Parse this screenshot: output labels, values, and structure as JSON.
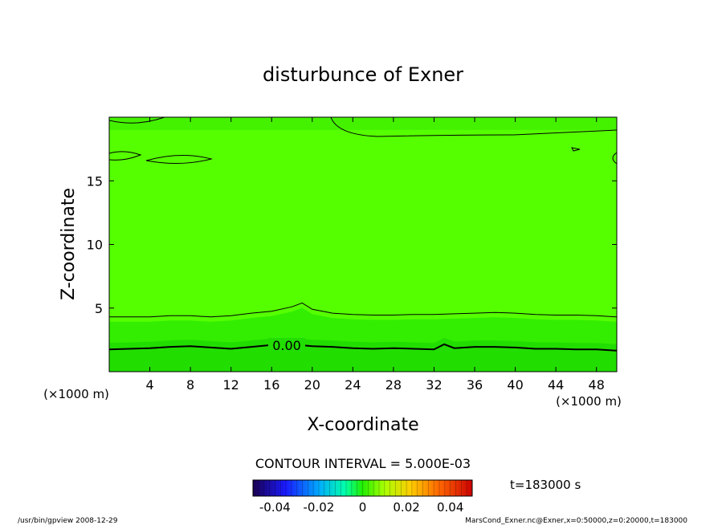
{
  "chart_data": {
    "type": "contour",
    "title": "disturbunce of Exner",
    "xlabel": "X-coordinate",
    "ylabel": "Z-coordinate",
    "x_unit_left": "(×1000 m)",
    "x_unit_right": "(×1000 m)",
    "xlim": [
      0,
      50
    ],
    "ylim": [
      0,
      20
    ],
    "xticks": [
      4,
      8,
      12,
      16,
      20,
      24,
      28,
      32,
      36,
      40,
      44,
      48
    ],
    "yticks": [
      5,
      10,
      15
    ],
    "contour_label": "0.00",
    "contour_interval_text": "CONTOUR INTERVAL = 5.000E-03",
    "time_text": "t=183000 s",
    "colorbar": {
      "ticks": [
        "-0.04",
        "-0.02",
        "0",
        "0.02",
        "0.04"
      ],
      "tick_values": [
        -0.04,
        -0.02,
        0,
        0.02,
        0.04
      ],
      "range": [
        -0.05,
        0.05
      ]
    },
    "contours": {
      "zero_line": [
        [
          0,
          1.75
        ],
        [
          2,
          1.8
        ],
        [
          4,
          1.85
        ],
        [
          6,
          1.95
        ],
        [
          8,
          2.0
        ],
        [
          10,
          1.9
        ],
        [
          12,
          1.8
        ],
        [
          14,
          1.95
        ],
        [
          16,
          2.1
        ],
        [
          18,
          2.15
        ],
        [
          20,
          2.0
        ],
        [
          22,
          1.95
        ],
        [
          24,
          1.85
        ],
        [
          26,
          1.8
        ],
        [
          28,
          1.85
        ],
        [
          30,
          1.8
        ],
        [
          32,
          1.75
        ],
        [
          33,
          2.15
        ],
        [
          34,
          1.85
        ],
        [
          36,
          1.95
        ],
        [
          38,
          1.95
        ],
        [
          40,
          1.9
        ],
        [
          42,
          1.8
        ],
        [
          44,
          1.8
        ],
        [
          46,
          1.75
        ],
        [
          48,
          1.75
        ],
        [
          50,
          1.65
        ]
      ],
      "upper_line": [
        [
          0,
          4.3
        ],
        [
          4,
          4.3
        ],
        [
          6,
          4.4
        ],
        [
          8,
          4.4
        ],
        [
          10,
          4.3
        ],
        [
          12,
          4.4
        ],
        [
          14,
          4.6
        ],
        [
          16,
          4.75
        ],
        [
          18,
          5.1
        ],
        [
          19,
          5.4
        ],
        [
          20,
          4.9
        ],
        [
          22,
          4.6
        ],
        [
          24,
          4.5
        ],
        [
          26,
          4.45
        ],
        [
          28,
          4.45
        ],
        [
          30,
          4.5
        ],
        [
          32,
          4.5
        ],
        [
          34,
          4.55
        ],
        [
          36,
          4.6
        ],
        [
          38,
          4.65
        ],
        [
          40,
          4.6
        ],
        [
          42,
          4.5
        ],
        [
          44,
          4.45
        ],
        [
          46,
          4.45
        ],
        [
          48,
          4.4
        ],
        [
          50,
          4.3
        ]
      ]
    }
  },
  "footer": {
    "left": "/usr/bin/gpview   2008-12-29",
    "right": "MarsCond_Exner.nc@Exner,x=0:50000,z=0:20000,t=183000"
  },
  "colors": {
    "plot_base": "#55ff00",
    "plot_band_low": "#22dd00",
    "plot_band_mid": "#33ee00",
    "plot_top": "#44f200"
  }
}
